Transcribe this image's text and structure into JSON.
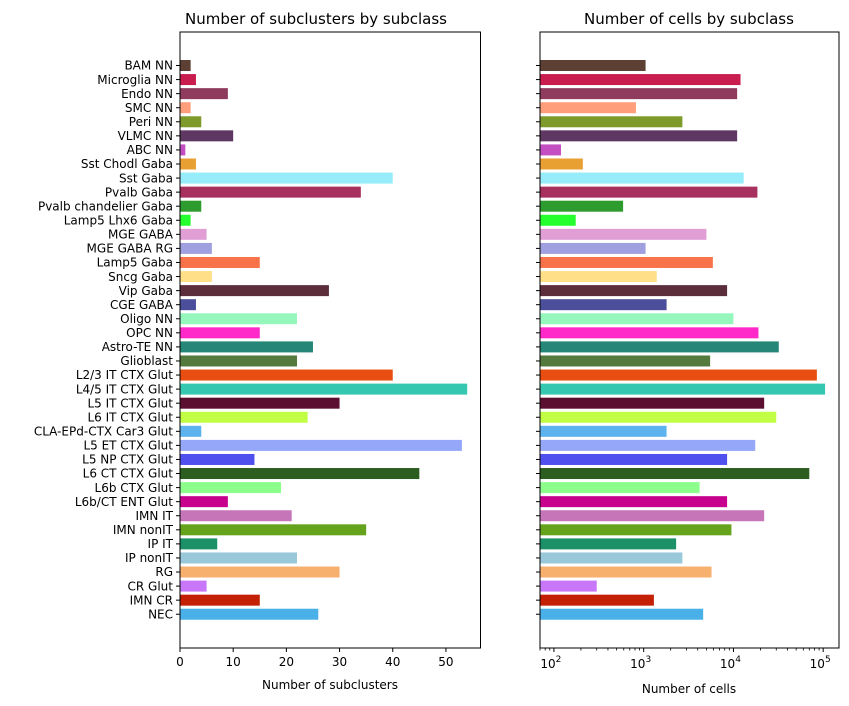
{
  "chart_data": [
    {
      "type": "bar",
      "orientation": "horizontal",
      "title": "Number of subclusters by subclass",
      "xlabel": "Number of subclusters",
      "ylabel": "",
      "xlim": [
        0,
        56.5
      ],
      "xticks": [
        "0",
        "10",
        "20",
        "30",
        "40",
        "50"
      ],
      "xtick_values": [
        0,
        10,
        20,
        30,
        40,
        50
      ],
      "categories": [
        "BAM NN",
        "Microglia NN",
        "Endo NN",
        "SMC NN",
        "Peri NN",
        "VLMC NN",
        "ABC NN",
        "Sst Chodl Gaba",
        "Sst Gaba",
        "Pvalb Gaba",
        "Pvalb chandelier Gaba",
        "Lamp5 Lhx6 Gaba",
        "MGE GABA",
        "MGE GABA RG",
        "Lamp5 Gaba",
        "Sncg Gaba",
        "Vip Gaba",
        "CGE GABA",
        "Oligo NN",
        "OPC NN",
        "Astro-TE NN",
        "Glioblast",
        "L2/3 IT CTX Glut",
        "L4/5 IT CTX Glut",
        "L5 IT CTX Glut",
        "L6 IT CTX Glut",
        "CLA-EPd-CTX Car3 Glut",
        "L5 ET CTX Glut",
        "L5 NP CTX Glut",
        "L6 CT CTX Glut",
        "L6b CTX Glut",
        "L6b/CT ENT Glut",
        "IMN IT",
        "IMN nonIT",
        "IP IT",
        "IP nonIT",
        "RG",
        "CR Glut",
        "IMN CR",
        "NEC"
      ],
      "values": [
        2,
        3,
        9,
        2,
        4,
        10,
        1,
        3,
        40,
        34,
        4,
        2,
        5,
        6,
        15,
        6,
        28,
        3,
        22,
        15,
        25,
        22,
        40,
        54,
        30,
        24,
        4,
        53,
        14,
        45,
        19,
        9,
        21,
        35,
        7,
        22,
        30,
        5,
        15,
        26
      ],
      "grid": false,
      "legend": "none"
    },
    {
      "type": "bar",
      "orientation": "horizontal",
      "title": "Number of cells by subclass",
      "xlabel": "Number of cells",
      "ylabel": "",
      "xscale": "log",
      "xlim": [
        70,
        150000
      ],
      "xticks": [
        {
          "base": "10",
          "exp": "2",
          "value": 100
        },
        {
          "base": "10",
          "exp": "3",
          "value": 1000
        },
        {
          "base": "10",
          "exp": "4",
          "value": 10000
        },
        {
          "base": "10",
          "exp": "5",
          "value": 100000
        }
      ],
      "categories": [
        "BAM NN",
        "Microglia NN",
        "Endo NN",
        "SMC NN",
        "Peri NN",
        "VLMC NN",
        "ABC NN",
        "Sst Chodl Gaba",
        "Sst Gaba",
        "Pvalb Gaba",
        "Pvalb chandelier Gaba",
        "Lamp5 Lhx6 Gaba",
        "MGE GABA",
        "MGE GABA RG",
        "Lamp5 Gaba",
        "Sncg Gaba",
        "Vip Gaba",
        "CGE GABA",
        "Oligo NN",
        "OPC NN",
        "Astro-TE NN",
        "Glioblast",
        "L2/3 IT CTX Glut",
        "L4/5 IT CTX Glut",
        "L5 IT CTX Glut",
        "L6 IT CTX Glut",
        "CLA-EPd-CTX Car3 Glut",
        "L5 ET CTX Glut",
        "L5 NP CTX Glut",
        "L6 CT CTX Glut",
        "L6b CTX Glut",
        "L6b/CT ENT Glut",
        "IMN IT",
        "IMN nonIT",
        "IP IT",
        "IP nonIT",
        "RG",
        "CR Glut",
        "IMN CR",
        "NEC"
      ],
      "values": [
        1050,
        12000,
        11000,
        820,
        2700,
        11000,
        120,
        210,
        13000,
        18500,
        590,
        175,
        5000,
        1050,
        5900,
        1400,
        8500,
        1800,
        10000,
        19000,
        32000,
        5500,
        85000,
        105000,
        22000,
        30000,
        1800,
        17500,
        8500,
        70000,
        4200,
        8500,
        22000,
        9500,
        2300,
        2700,
        5700,
        300,
        1300,
        4600
      ],
      "grid": false,
      "legend": "none"
    }
  ],
  "colors": [
    "#5c4033",
    "#c81d4e",
    "#8e3b5e",
    "#ff9e7a",
    "#7e9a2b",
    "#5e3762",
    "#c34fc3",
    "#e8a033",
    "#96ecf9",
    "#a8305e",
    "#2e9b2e",
    "#26ff2e",
    "#e09ed5",
    "#a0a0e0",
    "#f8734a",
    "#ffe088",
    "#5c2e3b",
    "#4b4f9b",
    "#96f7bd",
    "#ff28c9",
    "#268779",
    "#557a3e",
    "#e84e11",
    "#35c7b0",
    "#5b0e30",
    "#c1ff45",
    "#5cb3ee",
    "#94a7f8",
    "#5050ee",
    "#2b5e1f",
    "#8cff8c",
    "#c8008e",
    "#c675b8",
    "#66a31c",
    "#1c9168",
    "#98c8da",
    "#f8b06f",
    "#c777f8",
    "#c42005",
    "#4ab0e8"
  ]
}
